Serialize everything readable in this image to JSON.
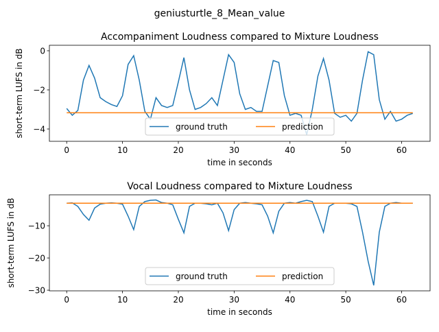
{
  "figure_title": "geniusturtle_8_Mean_value",
  "chart_data": [
    {
      "type": "line",
      "title": "Accompaniment Loudness compared to Mixture Loudness",
      "x_label": "time in seconds",
      "y_label": "short-term LUFS in dB",
      "x": [
        0,
        1,
        2,
        3,
        4,
        5,
        6,
        7,
        8,
        9,
        10,
        11,
        12,
        13,
        14,
        15,
        16,
        17,
        18,
        19,
        20,
        21,
        22,
        23,
        24,
        25,
        26,
        27,
        28,
        29,
        30,
        31,
        32,
        33,
        34,
        35,
        36,
        37,
        38,
        39,
        40,
        41,
        42,
        43,
        44,
        45,
        46,
        47,
        48,
        49,
        50,
        51,
        52,
        53,
        54,
        55,
        56,
        57,
        58,
        59,
        60,
        61,
        62
      ],
      "series": [
        {
          "name": "ground truth",
          "color": "#1f77b4",
          "values": [
            -2.95,
            -3.3,
            -3.05,
            -1.5,
            -0.75,
            -1.4,
            -2.4,
            -2.6,
            -2.75,
            -2.85,
            -2.3,
            -0.7,
            -0.25,
            -1.5,
            -3.1,
            -3.5,
            -2.4,
            -2.8,
            -2.9,
            -2.8,
            -1.6,
            -0.35,
            -2.0,
            -3.0,
            -2.9,
            -2.7,
            -2.4,
            -2.8,
            -1.5,
            -0.2,
            -0.6,
            -2.2,
            -3.0,
            -2.9,
            -3.1,
            -3.1,
            -1.8,
            -0.5,
            -0.6,
            -2.3,
            -3.3,
            -3.2,
            -3.3,
            -4.3,
            -3.0,
            -1.3,
            -0.4,
            -1.5,
            -3.2,
            -3.4,
            -3.3,
            -3.6,
            -3.2,
            -1.5,
            -0.05,
            -0.2,
            -2.5,
            -3.5,
            -3.1,
            -3.6,
            -3.5,
            -3.3,
            -3.2
          ]
        },
        {
          "name": "prediction",
          "color": "#ff7f0e",
          "x": [
            0,
            62
          ],
          "values": [
            -3.17,
            -3.17
          ]
        }
      ],
      "xlim": [
        -3.1,
        65.1
      ],
      "xticks": [
        0,
        10,
        20,
        30,
        40,
        50,
        60
      ],
      "ylim": [
        -4.63,
        0.28
      ],
      "yticks": [
        {
          "value": -4,
          "label": "−4"
        },
        {
          "value": -2,
          "label": "−2"
        },
        0
      ],
      "legend": "lower center"
    },
    {
      "type": "line",
      "title": "Vocal Loudness compared to Mixture Loudness",
      "x_label": "time in seconds",
      "y_label": "short-term LUFS in dB",
      "x": [
        0,
        1,
        2,
        3,
        4,
        5,
        6,
        7,
        8,
        9,
        10,
        11,
        12,
        13,
        14,
        15,
        16,
        17,
        18,
        19,
        20,
        21,
        22,
        23,
        24,
        25,
        26,
        27,
        28,
        29,
        30,
        31,
        32,
        33,
        34,
        35,
        36,
        37,
        38,
        39,
        40,
        41,
        42,
        43,
        44,
        45,
        46,
        47,
        48,
        49,
        50,
        51,
        52,
        53,
        54,
        55,
        56,
        57,
        58,
        59,
        60,
        61,
        62
      ],
      "series": [
        {
          "name": "ground truth",
          "color": "#1f77b4",
          "values": [
            -3,
            -2.9,
            -4,
            -6.5,
            -8.3,
            -4.5,
            -3.3,
            -3,
            -2.9,
            -3,
            -3.3,
            -7,
            -11.2,
            -4,
            -2.5,
            -2.1,
            -2,
            -2.8,
            -3,
            -3.5,
            -8,
            -12.2,
            -4,
            -3,
            -3,
            -3.2,
            -3.5,
            -3,
            -6,
            -11.5,
            -5,
            -3,
            -2.8,
            -3,
            -3.2,
            -3.5,
            -7,
            -12.2,
            -5.5,
            -3,
            -2.8,
            -3,
            -2.5,
            -2.1,
            -2.5,
            -7,
            -12,
            -4,
            -3,
            -3,
            -3,
            -3.2,
            -4,
            -12,
            -21,
            -28.5,
            -12,
            -4,
            -3,
            -2.8,
            -3,
            -3,
            -3
          ]
        },
        {
          "name": "prediction",
          "color": "#ff7f0e",
          "x": [
            0,
            62
          ],
          "values": [
            -3,
            -3
          ]
        }
      ],
      "xlim": [
        -3.1,
        65.1
      ],
      "xticks": [
        0,
        10,
        20,
        30,
        40,
        50,
        60
      ],
      "ylim": [
        -30.2,
        -0.4
      ],
      "yticks": [
        {
          "value": -30,
          "label": "−30"
        },
        {
          "value": -20,
          "label": "−20"
        },
        {
          "value": -10,
          "label": "−10"
        }
      ],
      "legend": "lower center"
    }
  ]
}
